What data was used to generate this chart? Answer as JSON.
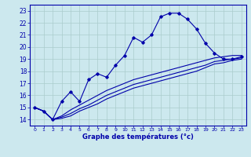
{
  "xlabel": "Graphe des températures (°c)",
  "bg_color": "#cce8ee",
  "grid_color": "#aacccc",
  "line_color": "#0000aa",
  "xlim": [
    -0.5,
    23.5
  ],
  "ylim": [
    13.5,
    23.5
  ],
  "xticks": [
    0,
    1,
    2,
    3,
    4,
    5,
    6,
    7,
    8,
    9,
    10,
    11,
    12,
    13,
    14,
    15,
    16,
    17,
    18,
    19,
    20,
    21,
    22,
    23
  ],
  "yticks": [
    14,
    15,
    16,
    17,
    18,
    19,
    20,
    21,
    22,
    23
  ],
  "main_x": [
    0,
    1,
    2,
    3,
    4,
    5,
    6,
    7,
    8,
    9,
    10,
    11,
    12,
    13,
    14,
    15,
    16,
    17,
    18,
    19,
    20,
    21,
    22,
    23
  ],
  "main_y": [
    15.0,
    14.7,
    14.0,
    15.5,
    16.3,
    15.5,
    17.3,
    17.8,
    17.5,
    18.5,
    19.3,
    20.8,
    20.4,
    21.0,
    22.5,
    22.8,
    22.8,
    22.3,
    21.5,
    20.3,
    19.5,
    19.0,
    19.0,
    19.2
  ],
  "line2_x": [
    0,
    1,
    2,
    3,
    4,
    5,
    6,
    7,
    8,
    9,
    10,
    11,
    12,
    13,
    14,
    15,
    16,
    17,
    18,
    19,
    20,
    21,
    22,
    23
  ],
  "line2_y": [
    15.0,
    14.7,
    14.0,
    14.3,
    14.8,
    15.2,
    15.6,
    16.0,
    16.4,
    16.7,
    17.0,
    17.3,
    17.5,
    17.7,
    17.9,
    18.1,
    18.3,
    18.5,
    18.7,
    18.9,
    19.1,
    19.2,
    19.3,
    19.3
  ],
  "line3_x": [
    0,
    1,
    2,
    3,
    4,
    5,
    6,
    7,
    8,
    9,
    10,
    11,
    12,
    13,
    14,
    15,
    16,
    17,
    18,
    19,
    20,
    21,
    22,
    23
  ],
  "line3_y": [
    15.0,
    14.7,
    14.0,
    14.2,
    14.5,
    14.9,
    15.2,
    15.6,
    16.0,
    16.3,
    16.6,
    16.9,
    17.1,
    17.3,
    17.5,
    17.7,
    17.9,
    18.1,
    18.3,
    18.5,
    18.8,
    18.9,
    19.0,
    19.1
  ],
  "line4_x": [
    0,
    1,
    2,
    3,
    4,
    5,
    6,
    7,
    8,
    9,
    10,
    11,
    12,
    13,
    14,
    15,
    16,
    17,
    18,
    19,
    20,
    21,
    22,
    23
  ],
  "line4_y": [
    15.0,
    14.7,
    14.0,
    14.1,
    14.3,
    14.7,
    15.0,
    15.3,
    15.7,
    16.0,
    16.3,
    16.6,
    16.8,
    17.0,
    17.2,
    17.4,
    17.6,
    17.8,
    18.0,
    18.3,
    18.6,
    18.7,
    18.9,
    19.0
  ]
}
